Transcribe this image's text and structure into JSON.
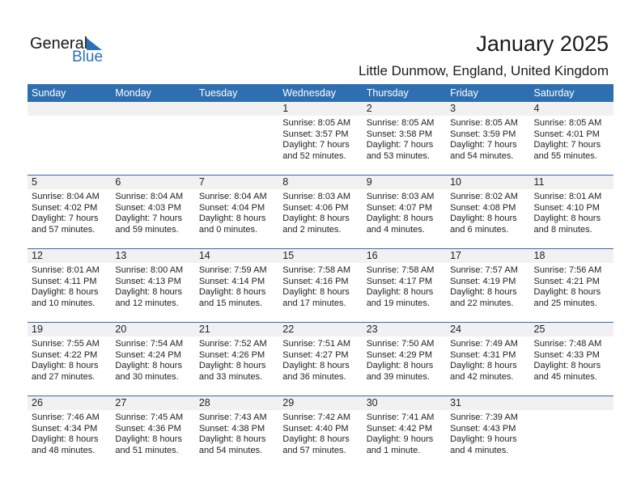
{
  "logo": {
    "general": "General",
    "blue": "Blue"
  },
  "title": "January 2025",
  "location": "Little Dunmow, England, United Kingdom",
  "weekdays": [
    "Sunday",
    "Monday",
    "Tuesday",
    "Wednesday",
    "Thursday",
    "Friday",
    "Saturday"
  ],
  "weeks": [
    [
      null,
      null,
      null,
      {
        "day": "1",
        "sunrise": "Sunrise: 8:05 AM",
        "sunset": "Sunset: 3:57 PM",
        "daylight1": "Daylight: 7 hours",
        "daylight2": "and 52 minutes."
      },
      {
        "day": "2",
        "sunrise": "Sunrise: 8:05 AM",
        "sunset": "Sunset: 3:58 PM",
        "daylight1": "Daylight: 7 hours",
        "daylight2": "and 53 minutes."
      },
      {
        "day": "3",
        "sunrise": "Sunrise: 8:05 AM",
        "sunset": "Sunset: 3:59 PM",
        "daylight1": "Daylight: 7 hours",
        "daylight2": "and 54 minutes."
      },
      {
        "day": "4",
        "sunrise": "Sunrise: 8:05 AM",
        "sunset": "Sunset: 4:01 PM",
        "daylight1": "Daylight: 7 hours",
        "daylight2": "and 55 minutes."
      }
    ],
    [
      {
        "day": "5",
        "sunrise": "Sunrise: 8:04 AM",
        "sunset": "Sunset: 4:02 PM",
        "daylight1": "Daylight: 7 hours",
        "daylight2": "and 57 minutes."
      },
      {
        "day": "6",
        "sunrise": "Sunrise: 8:04 AM",
        "sunset": "Sunset: 4:03 PM",
        "daylight1": "Daylight: 7 hours",
        "daylight2": "and 59 minutes."
      },
      {
        "day": "7",
        "sunrise": "Sunrise: 8:04 AM",
        "sunset": "Sunset: 4:04 PM",
        "daylight1": "Daylight: 8 hours",
        "daylight2": "and 0 minutes."
      },
      {
        "day": "8",
        "sunrise": "Sunrise: 8:03 AM",
        "sunset": "Sunset: 4:06 PM",
        "daylight1": "Daylight: 8 hours",
        "daylight2": "and 2 minutes."
      },
      {
        "day": "9",
        "sunrise": "Sunrise: 8:03 AM",
        "sunset": "Sunset: 4:07 PM",
        "daylight1": "Daylight: 8 hours",
        "daylight2": "and 4 minutes."
      },
      {
        "day": "10",
        "sunrise": "Sunrise: 8:02 AM",
        "sunset": "Sunset: 4:08 PM",
        "daylight1": "Daylight: 8 hours",
        "daylight2": "and 6 minutes."
      },
      {
        "day": "11",
        "sunrise": "Sunrise: 8:01 AM",
        "sunset": "Sunset: 4:10 PM",
        "daylight1": "Daylight: 8 hours",
        "daylight2": "and 8 minutes."
      }
    ],
    [
      {
        "day": "12",
        "sunrise": "Sunrise: 8:01 AM",
        "sunset": "Sunset: 4:11 PM",
        "daylight1": "Daylight: 8 hours",
        "daylight2": "and 10 minutes."
      },
      {
        "day": "13",
        "sunrise": "Sunrise: 8:00 AM",
        "sunset": "Sunset: 4:13 PM",
        "daylight1": "Daylight: 8 hours",
        "daylight2": "and 12 minutes."
      },
      {
        "day": "14",
        "sunrise": "Sunrise: 7:59 AM",
        "sunset": "Sunset: 4:14 PM",
        "daylight1": "Daylight: 8 hours",
        "daylight2": "and 15 minutes."
      },
      {
        "day": "15",
        "sunrise": "Sunrise: 7:58 AM",
        "sunset": "Sunset: 4:16 PM",
        "daylight1": "Daylight: 8 hours",
        "daylight2": "and 17 minutes."
      },
      {
        "day": "16",
        "sunrise": "Sunrise: 7:58 AM",
        "sunset": "Sunset: 4:17 PM",
        "daylight1": "Daylight: 8 hours",
        "daylight2": "and 19 minutes."
      },
      {
        "day": "17",
        "sunrise": "Sunrise: 7:57 AM",
        "sunset": "Sunset: 4:19 PM",
        "daylight1": "Daylight: 8 hours",
        "daylight2": "and 22 minutes."
      },
      {
        "day": "18",
        "sunrise": "Sunrise: 7:56 AM",
        "sunset": "Sunset: 4:21 PM",
        "daylight1": "Daylight: 8 hours",
        "daylight2": "and 25 minutes."
      }
    ],
    [
      {
        "day": "19",
        "sunrise": "Sunrise: 7:55 AM",
        "sunset": "Sunset: 4:22 PM",
        "daylight1": "Daylight: 8 hours",
        "daylight2": "and 27 minutes."
      },
      {
        "day": "20",
        "sunrise": "Sunrise: 7:54 AM",
        "sunset": "Sunset: 4:24 PM",
        "daylight1": "Daylight: 8 hours",
        "daylight2": "and 30 minutes."
      },
      {
        "day": "21",
        "sunrise": "Sunrise: 7:52 AM",
        "sunset": "Sunset: 4:26 PM",
        "daylight1": "Daylight: 8 hours",
        "daylight2": "and 33 minutes."
      },
      {
        "day": "22",
        "sunrise": "Sunrise: 7:51 AM",
        "sunset": "Sunset: 4:27 PM",
        "daylight1": "Daylight: 8 hours",
        "daylight2": "and 36 minutes."
      },
      {
        "day": "23",
        "sunrise": "Sunrise: 7:50 AM",
        "sunset": "Sunset: 4:29 PM",
        "daylight1": "Daylight: 8 hours",
        "daylight2": "and 39 minutes."
      },
      {
        "day": "24",
        "sunrise": "Sunrise: 7:49 AM",
        "sunset": "Sunset: 4:31 PM",
        "daylight1": "Daylight: 8 hours",
        "daylight2": "and 42 minutes."
      },
      {
        "day": "25",
        "sunrise": "Sunrise: 7:48 AM",
        "sunset": "Sunset: 4:33 PM",
        "daylight1": "Daylight: 8 hours",
        "daylight2": "and 45 minutes."
      }
    ],
    [
      {
        "day": "26",
        "sunrise": "Sunrise: 7:46 AM",
        "sunset": "Sunset: 4:34 PM",
        "daylight1": "Daylight: 8 hours",
        "daylight2": "and 48 minutes."
      },
      {
        "day": "27",
        "sunrise": "Sunrise: 7:45 AM",
        "sunset": "Sunset: 4:36 PM",
        "daylight1": "Daylight: 8 hours",
        "daylight2": "and 51 minutes."
      },
      {
        "day": "28",
        "sunrise": "Sunrise: 7:43 AM",
        "sunset": "Sunset: 4:38 PM",
        "daylight1": "Daylight: 8 hours",
        "daylight2": "and 54 minutes."
      },
      {
        "day": "29",
        "sunrise": "Sunrise: 7:42 AM",
        "sunset": "Sunset: 4:40 PM",
        "daylight1": "Daylight: 8 hours",
        "daylight2": "and 57 minutes."
      },
      {
        "day": "30",
        "sunrise": "Sunrise: 7:41 AM",
        "sunset": "Sunset: 4:42 PM",
        "daylight1": "Daylight: 9 hours",
        "daylight2": "and 1 minute."
      },
      {
        "day": "31",
        "sunrise": "Sunrise: 7:39 AM",
        "sunset": "Sunset: 4:43 PM",
        "daylight1": "Daylight: 9 hours",
        "daylight2": "and 4 minutes."
      },
      null
    ]
  ]
}
